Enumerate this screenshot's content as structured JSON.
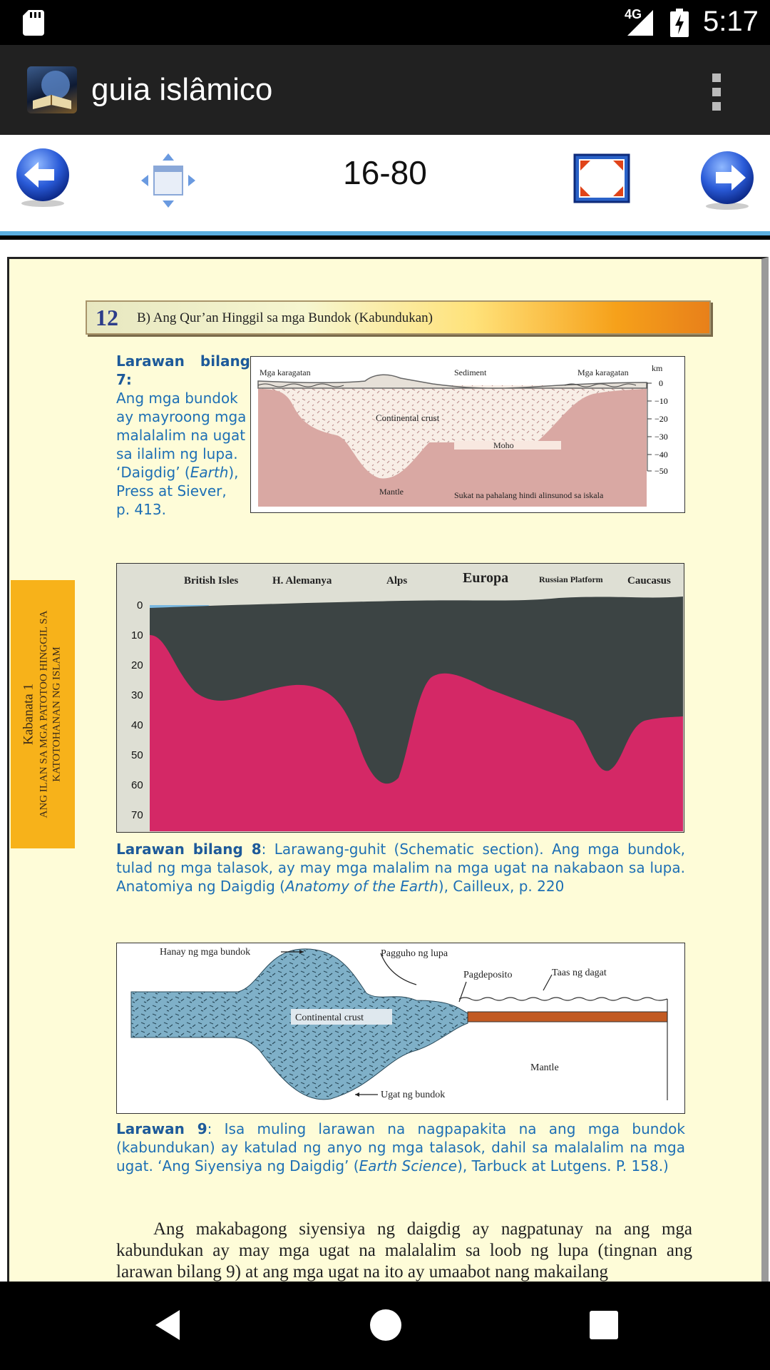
{
  "status_bar": {
    "time": "5:17",
    "network": "4G"
  },
  "app_bar": {
    "title": "guia islâmico"
  },
  "toolbar": {
    "page_indicator": "16-80"
  },
  "page": {
    "banner": {
      "number": "12",
      "title": "B) Ang Qur’an Hinggil sa mga Bundok (Kabundukan)"
    },
    "side_tab": {
      "line1": "Kabanata 1",
      "line2": "ANG ILAN SA MGA PATOTOO HINGGIL SA",
      "line3": "KATOTOHANAN NG ISLAM"
    },
    "figure7": {
      "caption_label": "Larawan bilang 7:",
      "caption_lines": [
        "Ang mga bundok",
        "ay mayroong mga",
        "malalalim na ugat",
        "sa ilalim ng lupa.",
        "‘Daigdig’ (",
        "Earth",
        "),",
        "Press at Siever,",
        "p. 413."
      ],
      "labels": {
        "left_ocean": "Mga karagatan",
        "sediment": "Sediment",
        "right_ocean": "Mga karagatan",
        "unit": "km",
        "crust": "Continental crust",
        "moho": "Moho",
        "mantle": "Mantle",
        "scale_note": "Sukat na pahalang hindi alinsunod sa iskala"
      },
      "depth_ticks": [
        "0",
        "−10",
        "−20",
        "−30",
        "−40",
        "−50"
      ]
    },
    "figure8": {
      "region_labels": [
        "British Isles",
        "H. Alemanya",
        "Alps",
        "Europa",
        "Russian Platform",
        "Caucasus"
      ],
      "depth_ticks": [
        "0",
        "10",
        "20",
        "30",
        "40",
        "50",
        "60",
        "70"
      ],
      "caption_label": "Larawan bilang 8",
      "caption_part1": ": Larawang-guhit (Schematic section). Ang mga bundok, tulad ng mga talasok, ay may mga malalim na mga ugat na nakabaon sa lupa. Anatomiya ng Daigdig (",
      "caption_italic": "Anatomy of the Earth",
      "caption_part2": "), Cailleux, p. 220"
    },
    "figure9": {
      "labels": {
        "range": "Hanay ng mga bundok",
        "erosion": "Pagguho ng lupa",
        "deposition": "Pagdeposito",
        "sea_level": "Taas ng dagat",
        "crust": "Continental crust",
        "mantle": "Mantle",
        "root": "Ugat ng bundok"
      },
      "caption_label": "Larawan 9",
      "caption_part1": ": Isa muling larawan na nagpapakita na ang mga bundok (kabundukan) ay katulad ng anyo ng mga talasok, dahil sa malalalim na mga ugat. ‘Ang Siyensiya ng Daigdig’ (",
      "caption_italic": "Earth Science",
      "caption_part2": "), Tarbuck at Lutgens. P. 158.)"
    },
    "body_text": "Ang makabagong siyensiya ng daigdig ay nagpatunay na ang mga kabundukan ay may mga ugat na malalalim sa loob ng lupa (tingnan ang larawan bilang 9) at ang mga ugat na ito ay umaabot nang makailang"
  },
  "colors": {
    "caption_blue": "#1d6fb5",
    "page_bg": "#fefcd8",
    "accent_rule": "#5aaee0",
    "side_tab": "#f7b21a"
  }
}
